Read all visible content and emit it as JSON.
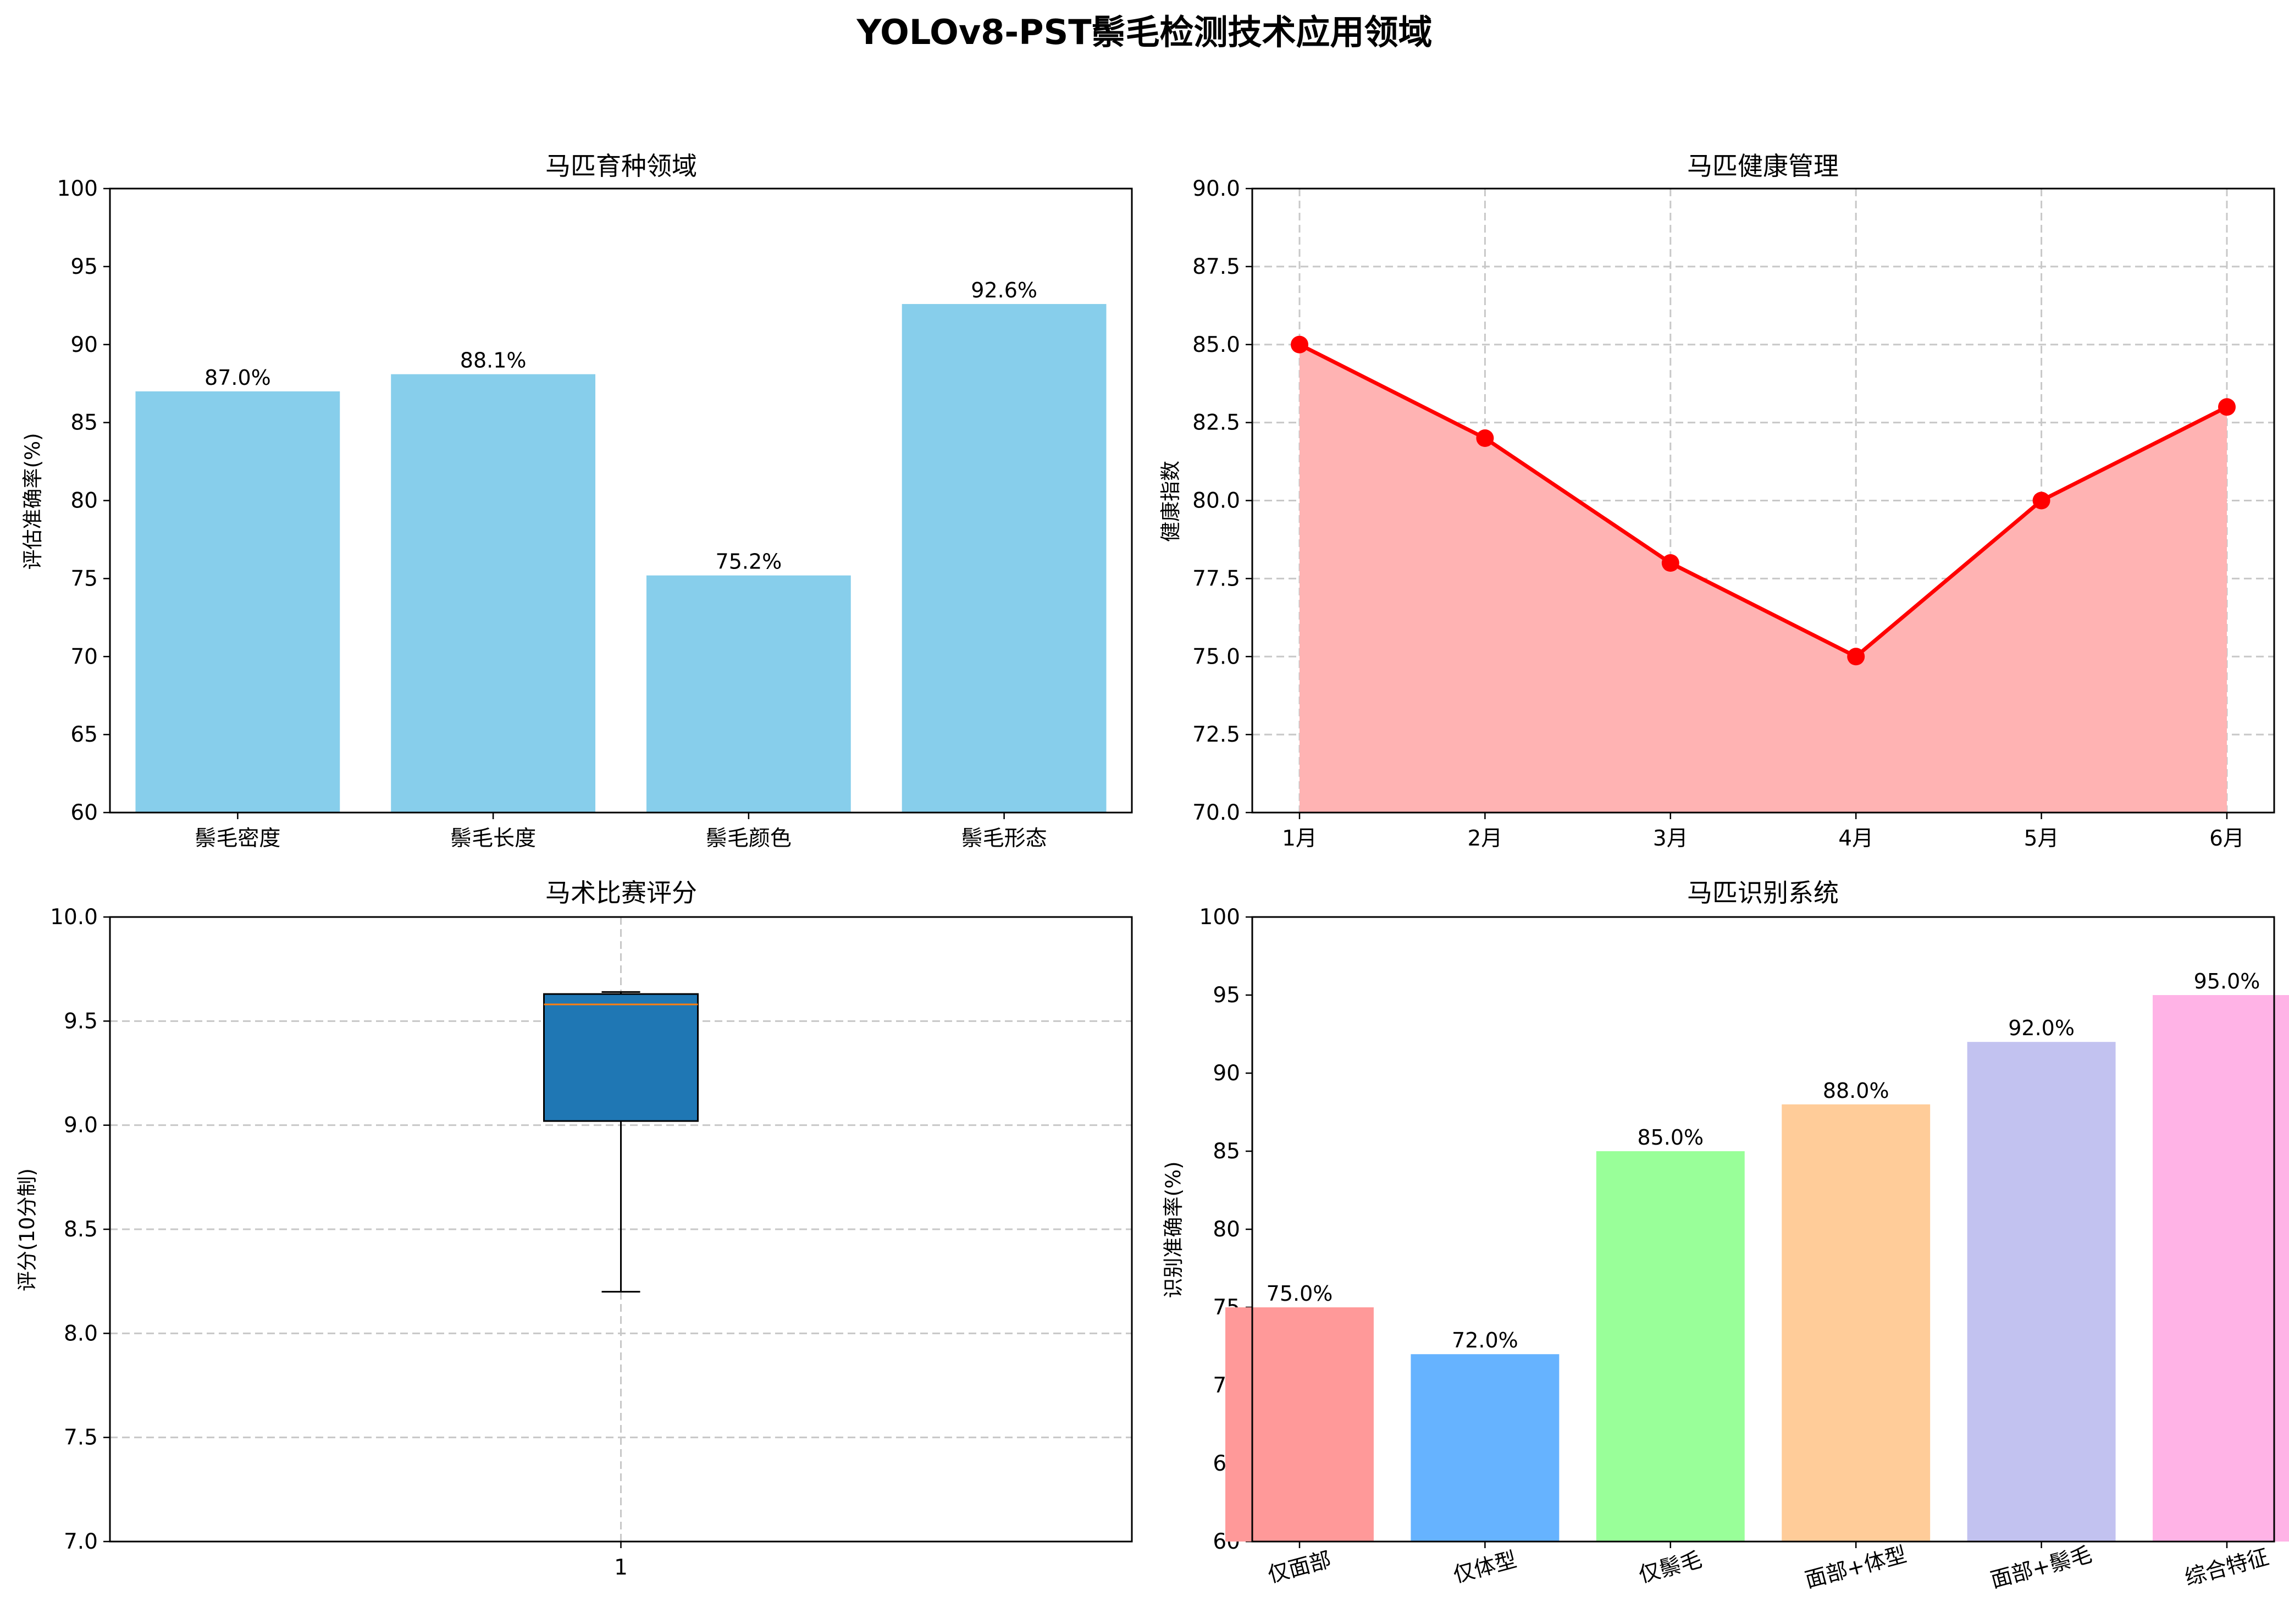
{
  "figure": {
    "title": "YOLOv8-PST鬃毛检测技术应用领域"
  },
  "chart_data": [
    {
      "type": "bar",
      "title": "马匹育种领域",
      "xlabel": "",
      "ylabel": "评估准确率(%)",
      "categories": [
        "鬃毛密度",
        "鬃毛长度",
        "鬃毛颜色",
        "鬃毛形态"
      ],
      "values": [
        87.0,
        88.1,
        75.2,
        92.6
      ],
      "value_labels": [
        "87.0%",
        "88.1%",
        "75.2%",
        "92.6%"
      ],
      "ylim": [
        60,
        100
      ],
      "yticks": [
        "60",
        "65",
        "70",
        "75",
        "80",
        "85",
        "90",
        "95",
        "100"
      ],
      "grid": false,
      "color": "#87ceeb"
    },
    {
      "type": "area",
      "title": "马匹健康管理",
      "xlabel": "",
      "ylabel": "健康指数",
      "x": [
        "1月",
        "2月",
        "3月",
        "4月",
        "5月",
        "6月"
      ],
      "values": [
        85,
        82,
        78,
        75,
        80,
        83
      ],
      "ylim": [
        70,
        90
      ],
      "yticks": [
        "70.0",
        "72.5",
        "75.0",
        "77.5",
        "80.0",
        "82.5",
        "85.0",
        "87.5",
        "90.0"
      ],
      "grid": true,
      "line_color": "#ff0000",
      "fill_color": "#ffb3b3"
    },
    {
      "type": "box",
      "title": "马术比赛评分",
      "xlabel": "",
      "ylabel": "评分(10分制)",
      "categories": [
        "1"
      ],
      "box": {
        "whisker_low": 8.2,
        "q1": 9.02,
        "median": 9.58,
        "q3": 9.63,
        "whisker_high": 9.64
      },
      "ylim": [
        7.0,
        10.0
      ],
      "yticks": [
        "7.0",
        "7.5",
        "8.0",
        "8.5",
        "9.0",
        "9.5",
        "10.0"
      ],
      "grid": true,
      "box_color": "#1f77b4",
      "median_color": "#ff7f0e"
    },
    {
      "type": "bar",
      "title": "马匹识别系统",
      "xlabel": "",
      "ylabel": "识别准确率(%)",
      "categories": [
        "仅面部",
        "仅体型",
        "仅鬃毛",
        "面部+体型",
        "面部+鬃毛",
        "综合特征"
      ],
      "values": [
        75.0,
        72.0,
        85.0,
        88.0,
        92.0,
        95.0
      ],
      "value_labels": [
        "75.0%",
        "72.0%",
        "85.0%",
        "88.0%",
        "92.0%",
        "95.0%"
      ],
      "ylim": [
        60,
        100
      ],
      "yticks": [
        "60",
        "65",
        "70",
        "75",
        "80",
        "85",
        "90",
        "95",
        "100"
      ],
      "grid": false,
      "colors": [
        "#ff9999",
        "#66b3ff",
        "#99ff99",
        "#ffcc99",
        "#c2c2f0",
        "#ffb3e6"
      ]
    }
  ]
}
